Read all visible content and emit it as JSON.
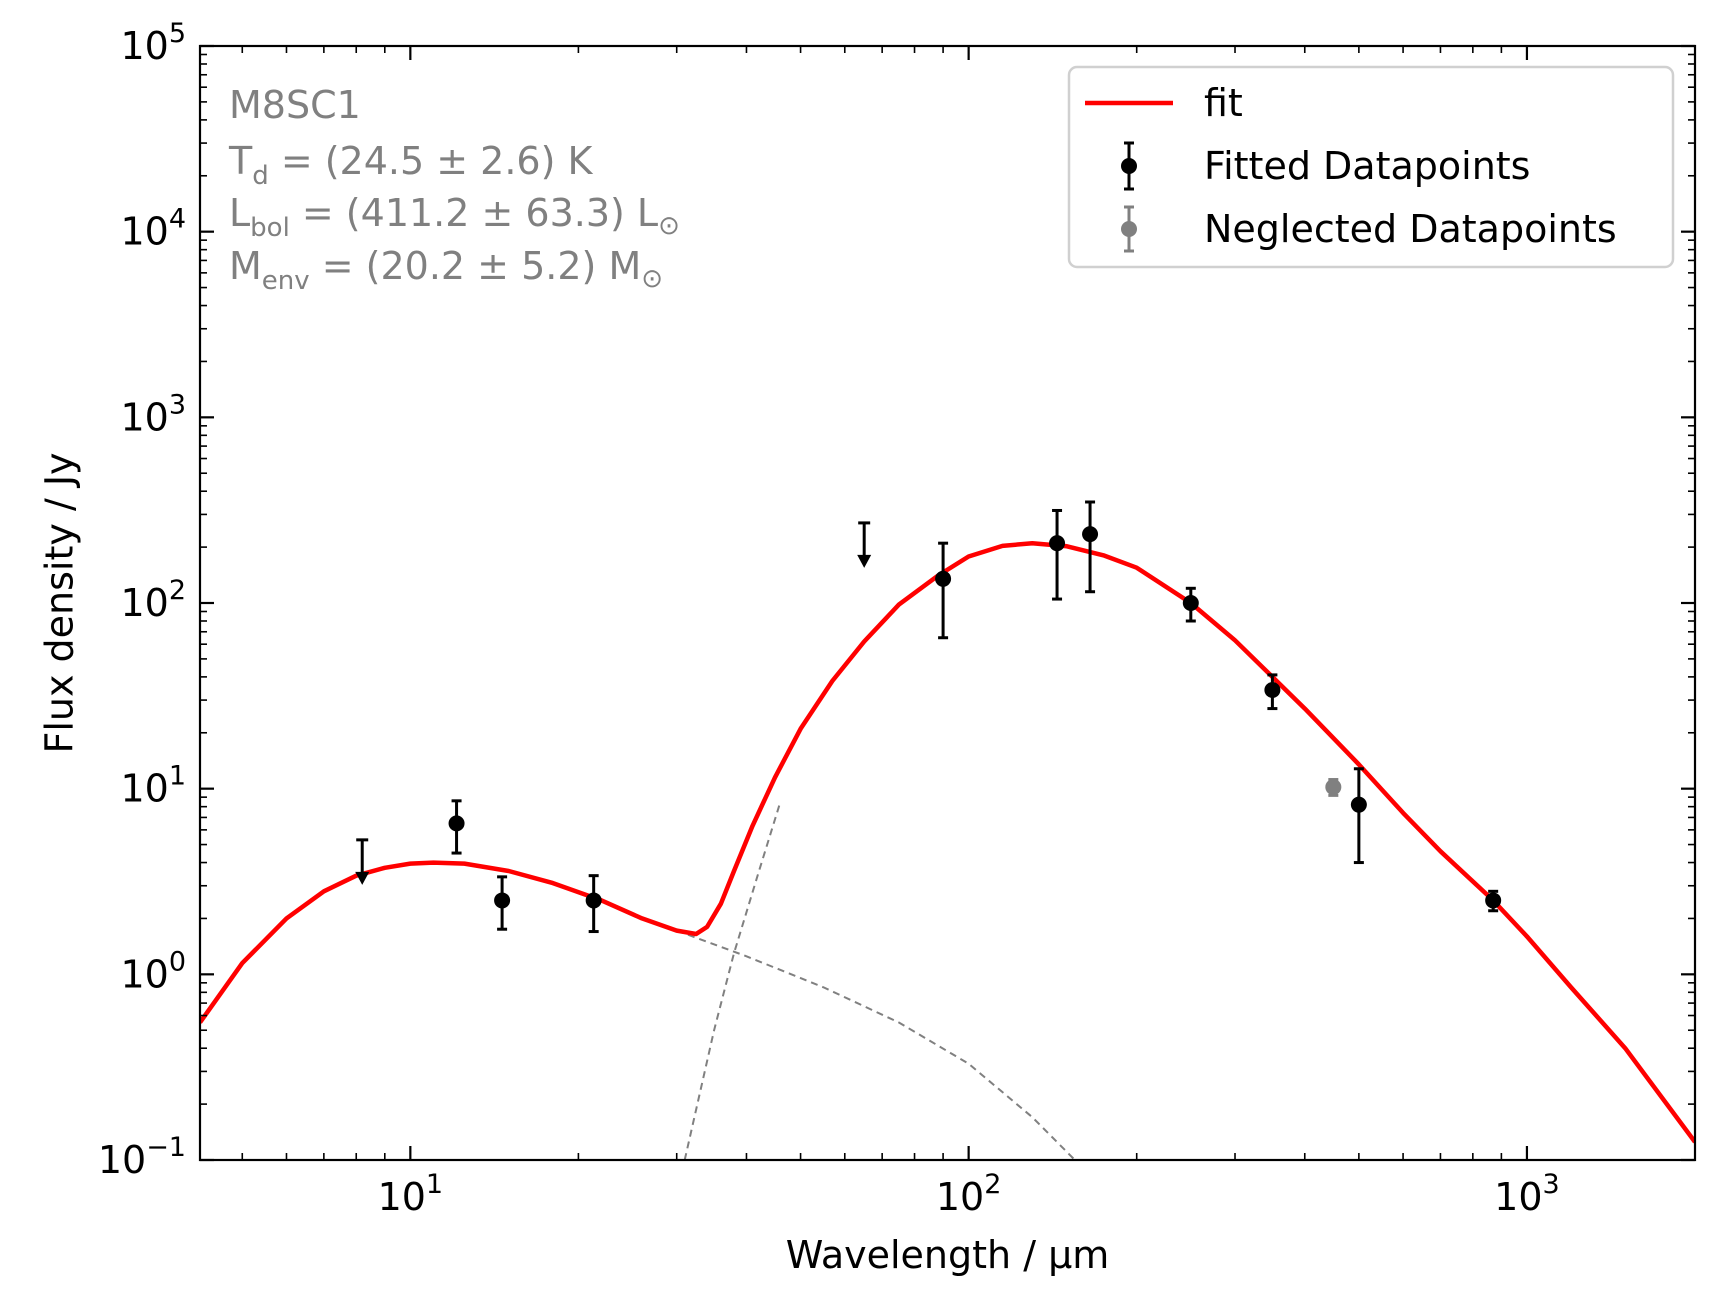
{
  "chart_data": {
    "type": "scatter",
    "title": "",
    "xlabel": "Wavelength / μm",
    "ylabel": "Flux density / Jy",
    "xscale": "log",
    "yscale": "log",
    "xlim": [
      4.2,
      2000
    ],
    "ylim": [
      0.1,
      100000
    ],
    "grid": false,
    "legend_position": "top-right",
    "x_ticks": [
      {
        "value": 10,
        "base": "10",
        "exp": "1"
      },
      {
        "value": 100,
        "base": "10",
        "exp": "2"
      },
      {
        "value": 1000,
        "base": "10",
        "exp": "3"
      }
    ],
    "y_ticks": [
      {
        "value": 0.1,
        "base": "10",
        "exp": "−1"
      },
      {
        "value": 1,
        "base": "10",
        "exp": "0"
      },
      {
        "value": 10,
        "base": "10",
        "exp": "1"
      },
      {
        "value": 100,
        "base": "10",
        "exp": "2"
      },
      {
        "value": 1000,
        "base": "10",
        "exp": "3"
      },
      {
        "value": 10000,
        "base": "10",
        "exp": "4"
      },
      {
        "value": 100000,
        "base": "10",
        "exp": "5"
      }
    ],
    "annotation": {
      "source": "M8SC1",
      "td": {
        "sym": "T",
        "sub": "d",
        "text": " = (24.5 ± 2.6) K"
      },
      "lbol": {
        "sym": "L",
        "sub": "bol",
        "text": " = (411.2 ± 63.3) L",
        "sun": "⊙"
      },
      "menv": {
        "sym": "M",
        "sub": "env",
        "text": " = (20.2 ± 5.2) M",
        "sun": "⊙"
      }
    },
    "legend": {
      "fit": "fit",
      "fitted": "Fitted Datapoints",
      "neglected": "Neglected Datapoints"
    },
    "colors": {
      "fit": "#ff0000",
      "fitted": "#000000",
      "neglected": "#808080",
      "components": "#808080"
    },
    "series": [
      {
        "name": "Fitted Datapoints",
        "points": [
          {
            "x": 12.1,
            "y": 6.5,
            "ylow": 4.5,
            "yhigh": 8.6
          },
          {
            "x": 14.6,
            "y": 2.5,
            "ylow": 1.75,
            "yhigh": 3.35
          },
          {
            "x": 21.3,
            "y": 2.5,
            "ylow": 1.7,
            "yhigh": 3.4
          },
          {
            "x": 90,
            "y": 135,
            "ylow": 65,
            "yhigh": 210
          },
          {
            "x": 144,
            "y": 210,
            "ylow": 105,
            "yhigh": 315
          },
          {
            "x": 165,
            "y": 235,
            "ylow": 115,
            "yhigh": 350
          },
          {
            "x": 250,
            "y": 100,
            "ylow": 80,
            "yhigh": 120
          },
          {
            "x": 350,
            "y": 34,
            "ylow": 27,
            "yhigh": 41
          },
          {
            "x": 500,
            "y": 8.2,
            "ylow": 4.0,
            "yhigh": 12.8
          },
          {
            "x": 870,
            "y": 2.5,
            "ylow": 2.2,
            "yhigh": 2.8
          }
        ]
      },
      {
        "name": "Upper limits",
        "points": [
          {
            "x": 8.2,
            "y": 5.3
          },
          {
            "x": 65,
            "y": 270
          }
        ]
      },
      {
        "name": "Neglected Datapoints",
        "points": [
          {
            "x": 450,
            "y": 10.2,
            "ylow": 9.2,
            "yhigh": 11.2
          }
        ]
      },
      {
        "name": "fit",
        "points": [
          {
            "x": 4.2,
            "y": 0.55
          },
          {
            "x": 5,
            "y": 1.15
          },
          {
            "x": 6,
            "y": 2.0
          },
          {
            "x": 7,
            "y": 2.8
          },
          {
            "x": 8,
            "y": 3.4
          },
          {
            "x": 9,
            "y": 3.75
          },
          {
            "x": 10,
            "y": 3.95
          },
          {
            "x": 11,
            "y": 4.0
          },
          {
            "x": 12.5,
            "y": 3.95
          },
          {
            "x": 15,
            "y": 3.6
          },
          {
            "x": 18,
            "y": 3.1
          },
          {
            "x": 22,
            "y": 2.5
          },
          {
            "x": 26,
            "y": 2.0
          },
          {
            "x": 30,
            "y": 1.72
          },
          {
            "x": 32.5,
            "y": 1.65
          },
          {
            "x": 34,
            "y": 1.8
          },
          {
            "x": 36,
            "y": 2.4
          },
          {
            "x": 38,
            "y": 3.6
          },
          {
            "x": 41,
            "y": 6.3
          },
          {
            "x": 45,
            "y": 11.5
          },
          {
            "x": 50,
            "y": 21
          },
          {
            "x": 57,
            "y": 38
          },
          {
            "x": 65,
            "y": 62
          },
          {
            "x": 75,
            "y": 98
          },
          {
            "x": 88,
            "y": 140
          },
          {
            "x": 100,
            "y": 178
          },
          {
            "x": 115,
            "y": 203
          },
          {
            "x": 130,
            "y": 210
          },
          {
            "x": 150,
            "y": 202
          },
          {
            "x": 175,
            "y": 180
          },
          {
            "x": 200,
            "y": 155
          },
          {
            "x": 250,
            "y": 100
          },
          {
            "x": 300,
            "y": 63
          },
          {
            "x": 350,
            "y": 40
          },
          {
            "x": 400,
            "y": 27
          },
          {
            "x": 500,
            "y": 13.5
          },
          {
            "x": 600,
            "y": 7.4
          },
          {
            "x": 700,
            "y": 4.6
          },
          {
            "x": 870,
            "y": 2.5
          },
          {
            "x": 1000,
            "y": 1.6
          },
          {
            "x": 1200,
            "y": 0.85
          },
          {
            "x": 1500,
            "y": 0.4
          },
          {
            "x": 2000,
            "y": 0.125
          }
        ]
      },
      {
        "name": "warm component",
        "points": [
          {
            "x": 30,
            "y": 1.72
          },
          {
            "x": 40,
            "y": 1.25
          },
          {
            "x": 55,
            "y": 0.85
          },
          {
            "x": 75,
            "y": 0.55
          },
          {
            "x": 100,
            "y": 0.33
          },
          {
            "x": 130,
            "y": 0.17
          },
          {
            "x": 155,
            "y": 0.1
          }
        ]
      },
      {
        "name": "cold component",
        "points": [
          {
            "x": 31,
            "y": 0.1
          },
          {
            "x": 35,
            "y": 0.5
          },
          {
            "x": 38,
            "y": 1.3
          },
          {
            "x": 42,
            "y": 3.5
          },
          {
            "x": 46,
            "y": 8.5
          }
        ]
      }
    ]
  }
}
